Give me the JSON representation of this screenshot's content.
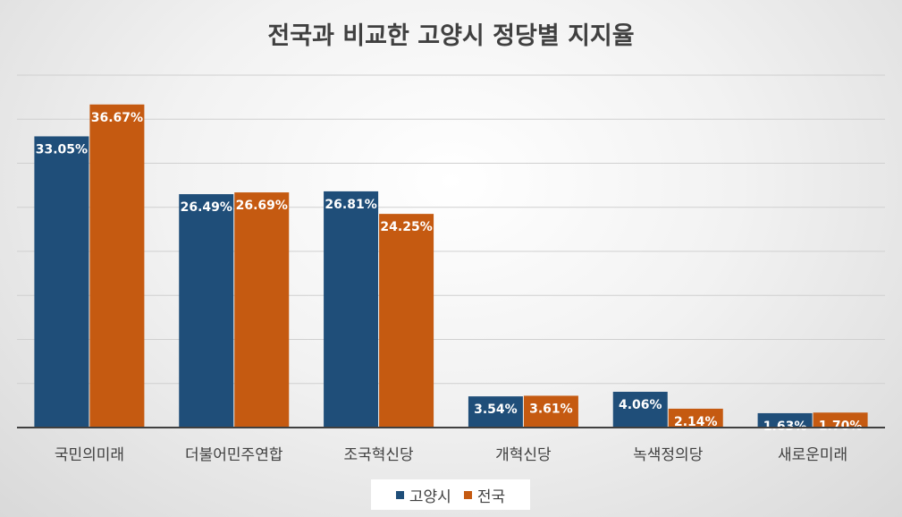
{
  "chart_data": {
    "type": "bar",
    "title": "전국과 비교한 고양시 정당별 지지율",
    "categories": [
      "국민의미래",
      "더불어민주연합",
      "조국혁신당",
      "개혁신당",
      "녹색정의당",
      "새로운미래"
    ],
    "series": [
      {
        "name": "고양시",
        "color": "#1f4e79",
        "values": [
          33.05,
          26.49,
          26.81,
          3.54,
          4.06,
          1.63
        ],
        "labels": [
          "33.05%",
          "26.49%",
          "26.81%",
          "3.54%",
          "4.06%",
          "1.63%"
        ]
      },
      {
        "name": "전국",
        "color": "#c55a11",
        "values": [
          36.67,
          26.69,
          24.25,
          3.61,
          2.14,
          1.7
        ],
        "labels": [
          "36.67%",
          "26.69%",
          "24.25%",
          "3.61%",
          "2.14%",
          "1.70%"
        ]
      }
    ],
    "ylim": [
      0,
      40
    ],
    "grid": true,
    "legend_position": "bottom"
  }
}
